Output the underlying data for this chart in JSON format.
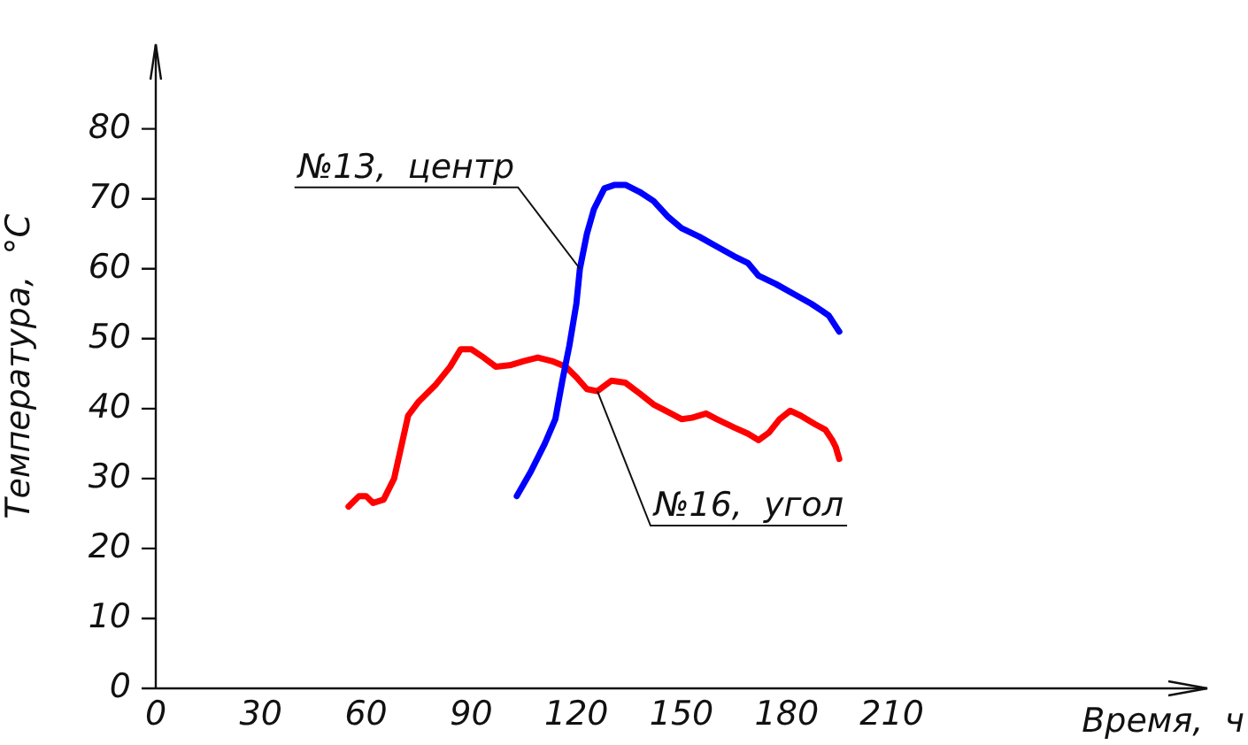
{
  "chart_data": {
    "type": "line",
    "xlabel": "Время,  ч",
    "ylabel": "Температура,  °С",
    "xlim": [
      0,
      300
    ],
    "ylim": [
      0,
      92
    ],
    "xticks": [
      0,
      30,
      60,
      90,
      120,
      150,
      180,
      210
    ],
    "yticks": [
      0,
      10,
      20,
      30,
      40,
      50,
      60,
      70,
      80
    ],
    "grid": false,
    "legend": false,
    "marker": "none",
    "line_style": "solid",
    "annotations": [
      {
        "text": "№13,  центр",
        "x": 121,
        "y": 60
      },
      {
        "text": "№16,  угол",
        "x": 126,
        "y": 42.5
      }
    ],
    "series": [
      {
        "color": "#0000ff",
        "x": [
          103,
          107,
          111,
          114,
          116,
          118,
          120,
          121,
          123,
          125,
          128,
          131,
          134,
          138,
          142,
          146,
          150,
          155,
          160,
          165,
          169,
          172,
          177,
          182,
          187,
          190,
          192,
          195
        ],
        "values": [
          27.5,
          31,
          35,
          38.5,
          44,
          49,
          55,
          60,
          65,
          68.5,
          71.5,
          72,
          72,
          71,
          69.7,
          67.5,
          65.8,
          64.6,
          63.2,
          61.8,
          60.8,
          59,
          57.8,
          56.4,
          55,
          54,
          53.3,
          51
        ]
      },
      {
        "color": "#ff0000",
        "x": [
          55,
          58,
          60,
          62,
          65,
          68,
          72,
          75,
          80,
          84,
          87,
          90,
          93,
          97,
          101,
          105,
          109,
          113,
          117,
          120,
          123,
          126,
          130,
          134,
          138,
          142,
          147,
          150,
          153,
          157,
          160,
          165,
          169,
          172,
          175,
          178,
          181,
          184,
          188,
          191,
          193,
          194,
          195
        ],
        "values": [
          26,
          27.5,
          27.5,
          26.5,
          27,
          30,
          39,
          41,
          43.5,
          46,
          48.5,
          48.5,
          47.5,
          46,
          46.2,
          46.8,
          47.3,
          46.8,
          46,
          44.5,
          42.8,
          42.5,
          44,
          43.7,
          42.2,
          40.6,
          39.3,
          38.5,
          38.7,
          39.3,
          38.5,
          37.3,
          36.4,
          35.5,
          36.6,
          38.5,
          39.7,
          39,
          37.8,
          37,
          35.5,
          34.5,
          32.8
        ]
      }
    ]
  }
}
